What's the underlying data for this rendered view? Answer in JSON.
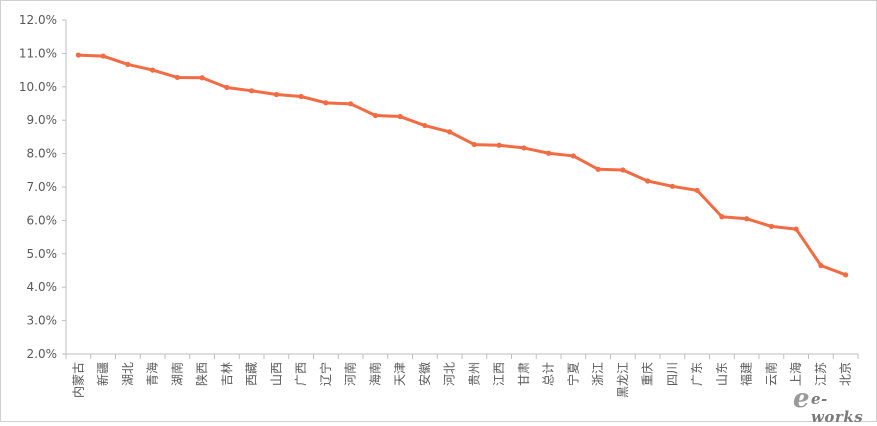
{
  "chart_data": {
    "type": "line",
    "title": "",
    "xlabel": "",
    "ylabel": "",
    "ylim": [
      0.02,
      0.12
    ],
    "yticks": [
      "2.0%",
      "3.0%",
      "4.0%",
      "5.0%",
      "6.0%",
      "7.0%",
      "8.0%",
      "9.0%",
      "10.0%",
      "11.0%",
      "12.0%"
    ],
    "grid": false,
    "legend": "none",
    "categories": [
      "内蒙古",
      "新疆",
      "湖北",
      "青海",
      "湖南",
      "陕西",
      "吉林",
      "西藏",
      "山西",
      "广西",
      "辽宁",
      "河南",
      "海南",
      "天津",
      "安徽",
      "河北",
      "贵州",
      "江西",
      "甘肃",
      "总计",
      "宁夏",
      "浙江",
      "黑龙江",
      "重庆",
      "四川",
      "广东",
      "山东",
      "福建",
      "云南",
      "上海",
      "江苏",
      "北京"
    ],
    "series": [
      {
        "color": "#f26b43",
        "values": [
          0.1095,
          0.1092,
          0.1067,
          0.105,
          0.1028,
          0.1027,
          0.0998,
          0.0988,
          0.0977,
          0.0971,
          0.0952,
          0.0949,
          0.0914,
          0.0911,
          0.0884,
          0.0865,
          0.0827,
          0.0825,
          0.0817,
          0.0801,
          0.0793,
          0.0753,
          0.0751,
          0.0718,
          0.0702,
          0.069,
          0.0611,
          0.0605,
          0.0582,
          0.0574,
          0.0465,
          0.0437
        ]
      }
    ]
  },
  "watermark": {
    "text": "e-works"
  }
}
